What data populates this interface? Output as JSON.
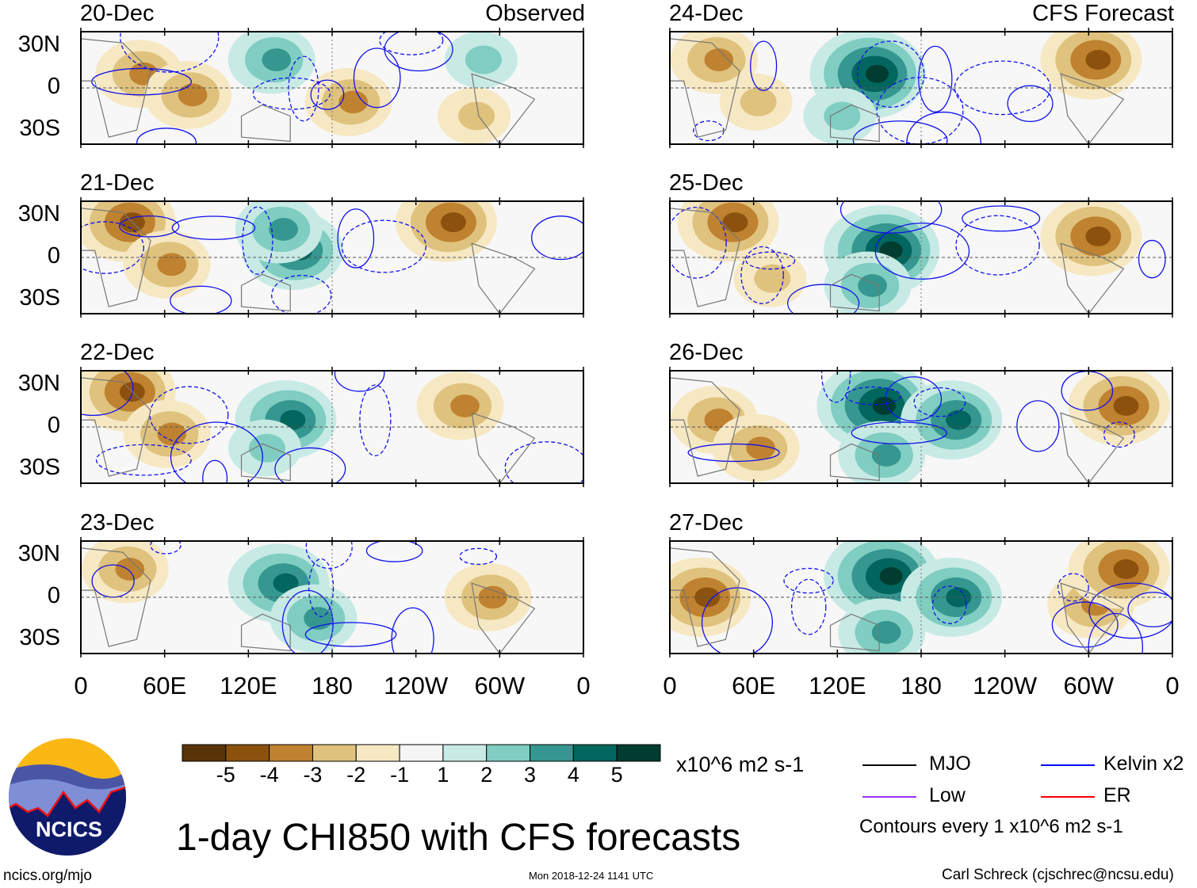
{
  "chart_data": {
    "type": "heatmap",
    "title": "1-day CHI850 with CFS forecasts",
    "units": "x10^6 m2 s-1",
    "columns": [
      {
        "label": "Observed",
        "panels": [
          "20-Dec",
          "21-Dec",
          "22-Dec",
          "23-Dec"
        ]
      },
      {
        "label": "CFS Forecast",
        "panels": [
          "24-Dec",
          "25-Dec",
          "26-Dec",
          "27-Dec"
        ]
      }
    ],
    "lat_ticks": [
      "30N",
      "0",
      "30S"
    ],
    "lat_values": [
      30,
      0,
      -30
    ],
    "lat_range": [
      -40,
      40
    ],
    "lon_ticks": [
      "0",
      "60E",
      "120E",
      "180",
      "120W",
      "60W",
      "0"
    ],
    "lon_values": [
      0,
      60,
      120,
      180,
      240,
      300,
      360
    ],
    "colorbar": {
      "labels": [
        "-5",
        "-4",
        "-3",
        "-2",
        "-1",
        "1",
        "2",
        "3",
        "4",
        "5"
      ],
      "colors": [
        "#5a3409",
        "#8c520d",
        "#bf8230",
        "#dfc27d",
        "#f6e8c3",
        "#f5f5f5",
        "#c7eae5",
        "#80cdc1",
        "#35978f",
        "#01665e",
        "#003c30"
      ]
    },
    "anomaly_centers_lon_lat_value": {
      "20-Dec": [
        [
          40,
          10,
          -3
        ],
        [
          75,
          -5,
          -3
        ],
        [
          190,
          -10,
          -3
        ],
        [
          280,
          -20,
          -2
        ],
        [
          135,
          20,
          3
        ],
        [
          285,
          20,
          2
        ]
      ],
      "21-Dec": [
        [
          30,
          25,
          -4
        ],
        [
          60,
          -5,
          -3
        ],
        [
          260,
          25,
          -4
        ],
        [
          150,
          5,
          4
        ],
        [
          140,
          20,
          3
        ]
      ],
      "22-Dec": [
        [
          30,
          25,
          -4
        ],
        [
          60,
          -5,
          -3
        ],
        [
          270,
          15,
          -3
        ],
        [
          145,
          5,
          4
        ],
        [
          130,
          -15,
          2
        ]
      ],
      "23-Dec": [
        [
          30,
          20,
          -3
        ],
        [
          290,
          0,
          -3
        ],
        [
          140,
          10,
          4
        ],
        [
          165,
          -15,
          3
        ]
      ],
      "24-Dec": [
        [
          30,
          20,
          -3
        ],
        [
          300,
          20,
          -4
        ],
        [
          60,
          -10,
          -2
        ],
        [
          140,
          10,
          5
        ],
        [
          120,
          -20,
          2
        ]
      ],
      "25-Dec": [
        [
          40,
          25,
          -4
        ],
        [
          300,
          15,
          -4
        ],
        [
          70,
          -15,
          -2
        ],
        [
          150,
          5,
          5
        ],
        [
          140,
          -20,
          3
        ]
      ],
      "26-Dec": [
        [
          30,
          5,
          -3
        ],
        [
          320,
          15,
          -4
        ],
        [
          60,
          -15,
          -3
        ],
        [
          145,
          15,
          5
        ],
        [
          200,
          5,
          4
        ],
        [
          150,
          -20,
          3
        ]
      ],
      "27-Dec": [
        [
          20,
          0,
          -4
        ],
        [
          300,
          -5,
          -3
        ],
        [
          320,
          20,
          -4
        ],
        [
          150,
          15,
          5
        ],
        [
          200,
          0,
          4
        ],
        [
          150,
          -25,
          3
        ]
      ]
    }
  },
  "legend": {
    "items": [
      {
        "label": "MJO",
        "color": "#000000"
      },
      {
        "label": "Kelvin x2",
        "color": "#0000ff"
      },
      {
        "label": "Low",
        "color": "#9933ff"
      },
      {
        "label": "ER",
        "color": "#ff0000"
      }
    ],
    "contours_note": "Contours every 1 x10^6 m2 s-1"
  },
  "logo": {
    "text": "NCICS"
  },
  "footer": {
    "url": "ncics.org/mjo",
    "timestamp": "Mon 2018-12-24 1141 UTC",
    "author": "Carl Schreck (cjschrec@ncsu.edu)"
  }
}
